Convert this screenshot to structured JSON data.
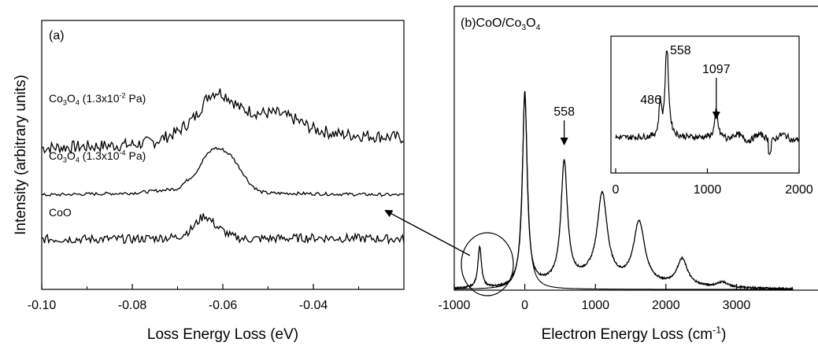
{
  "chart_data": [
    {
      "type": "line",
      "panel_label": "(a)",
      "xlabel": "Loss Energy Loss (eV)",
      "ylabel": "Intensity (arbitrary units)",
      "xlim": [
        -0.1,
        -0.02
      ],
      "x_ticks": [
        -0.1,
        -0.08,
        -0.06,
        -0.04
      ],
      "x_tick_labels": [
        "-0.10",
        "-0.08",
        "-0.06",
        "-0.04"
      ],
      "y_ticks_shown": false,
      "grid": false,
      "series": [
        {
          "name_parts": [
            "Co",
            "3",
            "O",
            "4",
            " (1.3x10",
            "-2",
            " Pa)"
          ],
          "offset": 2.0,
          "noise": 0.1,
          "points": [
            [
              -0.1,
              0.0
            ],
            [
              -0.09,
              0.02
            ],
            [
              -0.08,
              0.05
            ],
            [
              -0.075,
              0.1
            ],
            [
              -0.07,
              0.25
            ],
            [
              -0.066,
              0.5
            ],
            [
              -0.063,
              0.85
            ],
            [
              -0.061,
              0.9
            ],
            [
              -0.059,
              0.82
            ],
            [
              -0.056,
              0.62
            ],
            [
              -0.052,
              0.55
            ],
            [
              -0.048,
              0.55
            ],
            [
              -0.044,
              0.45
            ],
            [
              -0.04,
              0.3
            ],
            [
              -0.035,
              0.22
            ],
            [
              -0.03,
              0.2
            ],
            [
              -0.025,
              0.18
            ],
            [
              -0.02,
              0.16
            ]
          ]
        },
        {
          "name_parts": [
            "Co",
            "3",
            "O",
            "4",
            " (1.3x10",
            "-4",
            " Pa)"
          ],
          "offset": 1.25,
          "noise": 0.025,
          "points": [
            [
              -0.1,
              0.0
            ],
            [
              -0.08,
              0.03
            ],
            [
              -0.07,
              0.1
            ],
            [
              -0.066,
              0.35
            ],
            [
              -0.064,
              0.6
            ],
            [
              -0.062,
              0.75
            ],
            [
              -0.06,
              0.72
            ],
            [
              -0.058,
              0.62
            ],
            [
              -0.056,
              0.4
            ],
            [
              -0.054,
              0.18
            ],
            [
              -0.052,
              0.06
            ],
            [
              -0.05,
              0.03
            ],
            [
              -0.04,
              0.02
            ],
            [
              -0.02,
              0.0
            ]
          ]
        },
        {
          "name_parts": [
            "CoO"
          ],
          "offset": 0.55,
          "noise": 0.07,
          "points": [
            [
              -0.1,
              0.0
            ],
            [
              -0.08,
              0.0
            ],
            [
              -0.07,
              0.03
            ],
            [
              -0.067,
              0.15
            ],
            [
              -0.065,
              0.32
            ],
            [
              -0.064,
              0.38
            ],
            [
              -0.063,
              0.32
            ],
            [
              -0.061,
              0.18
            ],
            [
              -0.058,
              0.04
            ],
            [
              -0.055,
              0.0
            ],
            [
              -0.04,
              0.02
            ],
            [
              -0.02,
              0.0
            ]
          ]
        }
      ]
    },
    {
      "type": "line",
      "title_parts": [
        "(b)CoO/Co",
        "3",
        "O",
        "4"
      ],
      "xlabel_parts": [
        "Electron Energy Loss (cm",
        "-1",
        ")"
      ],
      "xlim": [
        -1000,
        3800
      ],
      "x_ticks": [
        -1000,
        0,
        1000,
        2000,
        3000
      ],
      "x_tick_labels": [
        "-1000",
        "0",
        "1000",
        "2000",
        "3000"
      ],
      "ylim": [
        0,
        1.05
      ],
      "y_ticks_shown": false,
      "grid": false,
      "series": [
        {
          "name": "",
          "noise": 0.004,
          "peaks": [
            {
              "x": -640,
              "h": 0.2,
              "w": 30
            },
            {
              "x": 0,
              "h": 0.94,
              "w": 40
            },
            {
              "x": 558,
              "h": 0.58,
              "w": 55
            },
            {
              "x": 1097,
              "h": 0.42,
              "w": 85
            },
            {
              "x": 1620,
              "h": 0.3,
              "w": 95
            },
            {
              "x": 2230,
              "h": 0.13,
              "w": 90
            },
            {
              "x": 2800,
              "h": 0.025,
              "w": 90
            }
          ]
        },
        {
          "name": "",
          "noise": 0,
          "peaks": [
            {
              "x": 0,
              "h": 0.94,
              "w": 45
            }
          ]
        }
      ],
      "annotations": [
        {
          "text": "558",
          "x": 558,
          "y": 0.62,
          "arrow": true
        }
      ],
      "inset": {
        "xlim": [
          0,
          2000
        ],
        "x_ticks": [
          0,
          1000,
          2000
        ],
        "x_tick_labels": [
          "0",
          "1000",
          "2000"
        ],
        "peak_labels": [
          {
            "text": "486",
            "x": 486
          },
          {
            "text": "558",
            "x": 558
          },
          {
            "text": "1097",
            "x": 1097,
            "arrow": true
          }
        ],
        "peaks": [
          {
            "x": 486,
            "h": 0.35,
            "w": 15
          },
          {
            "x": 558,
            "h": 0.95,
            "w": 22
          },
          {
            "x": 1097,
            "h": 0.28,
            "w": 20
          }
        ]
      }
    }
  ],
  "cross_panel_arrow": {
    "from": "panel-b circled peak (-640 cm-1)",
    "to": "panel-a CoO"
  }
}
